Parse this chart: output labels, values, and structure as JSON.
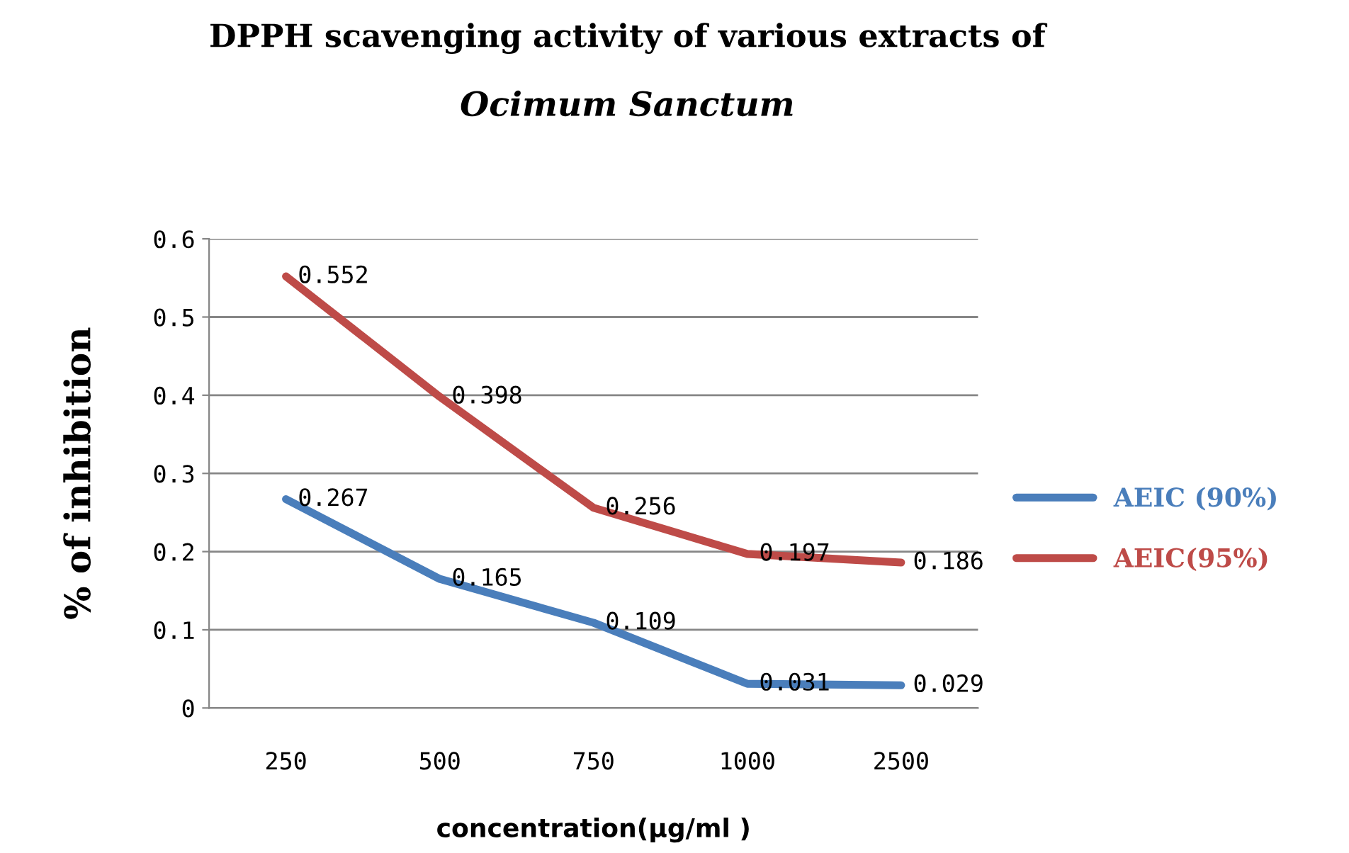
{
  "chart_data": {
    "type": "line",
    "title": "DPPH scavenging activity of various extracts of",
    "subtitle": "Ocimum Sanctum",
    "xlabel": "concentration(µg/ml )",
    "ylabel": "% of inhibition",
    "categories": [
      "250",
      "500",
      "750",
      "1000",
      "2500"
    ],
    "series": [
      {
        "name": "AEIC (90%)",
        "color": "#4a7ebb",
        "values": [
          0.267,
          0.165,
          0.109,
          0.031,
          0.029
        ]
      },
      {
        "name": "AEIC(95%)",
        "color": "#be4b48",
        "values": [
          0.552,
          0.398,
          0.256,
          0.197,
          0.186
        ]
      }
    ],
    "ylim": [
      0,
      0.6
    ],
    "yticks": [
      0,
      0.1,
      0.2,
      0.3,
      0.4,
      0.5,
      0.6
    ],
    "grid": "y",
    "legend": "right",
    "data_labels": true,
    "marker": "none",
    "line_style": "solid"
  }
}
